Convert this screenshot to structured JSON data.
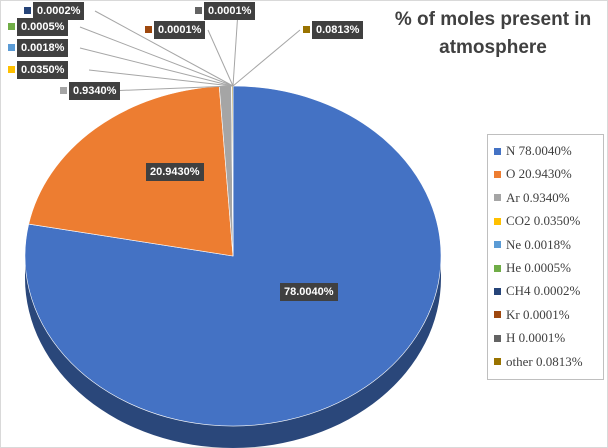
{
  "chart_data": {
    "type": "pie",
    "title": "% of moles present in atmosphere",
    "legend_position": "right",
    "slices": [
      {
        "name": "N",
        "value": 78.004,
        "label": "78.0040%",
        "legend": "N 78.0040%",
        "color": "#4472C4"
      },
      {
        "name": "O",
        "value": 20.943,
        "label": "20.9430%",
        "legend": "O 20.9430%",
        "color": "#ED7D31"
      },
      {
        "name": "Ar",
        "value": 0.934,
        "label": "0.9340%",
        "legend": "Ar 0.9340%",
        "color": "#A5A5A5"
      },
      {
        "name": "CO2",
        "value": 0.035,
        "label": "0.0350%",
        "legend": "CO2 0.0350%",
        "color": "#FFC000"
      },
      {
        "name": "Ne",
        "value": 0.0018,
        "label": "0.0018%",
        "legend": "Ne 0.0018%",
        "color": "#5B9BD5"
      },
      {
        "name": "He",
        "value": 0.0005,
        "label": "0.0005%",
        "legend": "He 0.0005%",
        "color": "#70AD47"
      },
      {
        "name": "CH4",
        "value": 0.0002,
        "label": "0.0002%",
        "legend": "CH4 0.0002%",
        "color": "#264478"
      },
      {
        "name": "Kr",
        "value": 0.0001,
        "label": "0.0001%",
        "legend": "Kr 0.0001%",
        "color": "#9E480E"
      },
      {
        "name": "H",
        "value": 0.0001,
        "label": "0.0001%",
        "legend": "H 0.0001%",
        "color": "#636363"
      },
      {
        "name": "other",
        "value": 0.0813,
        "label": "0.0813%",
        "legend": "other 0.0813%",
        "color": "#997300"
      }
    ]
  }
}
